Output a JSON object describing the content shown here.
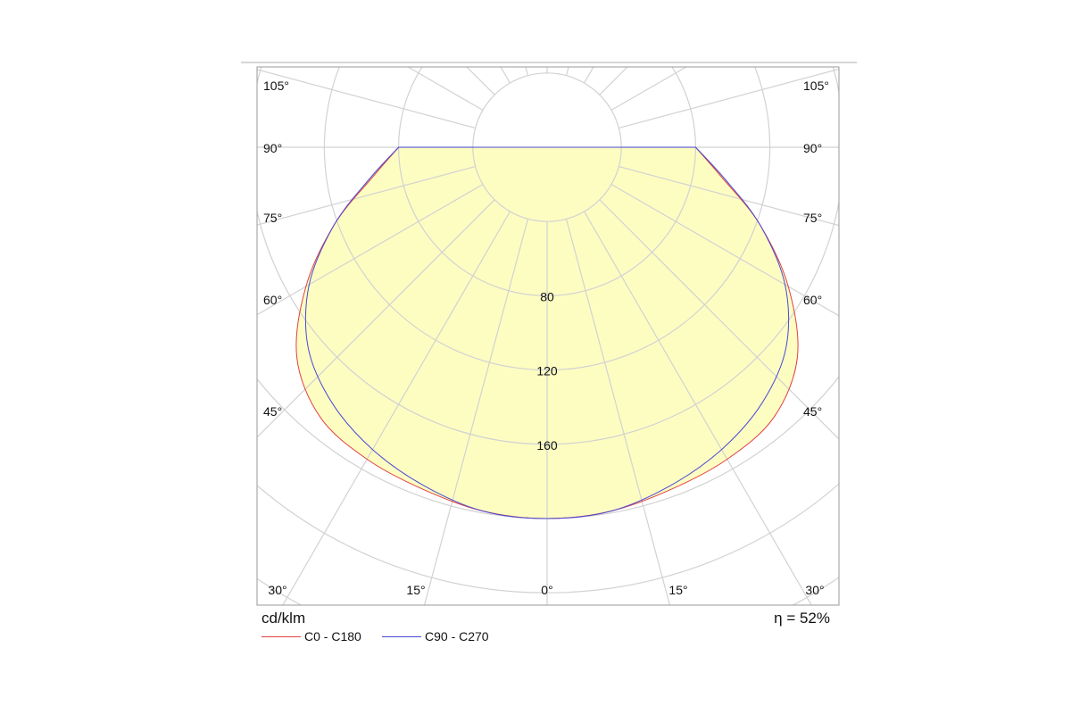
{
  "chart_data": {
    "type": "polar",
    "unit": "cd/klm",
    "efficiency_label": "η = 52%",
    "radial_ticks": [
      "80",
      "120",
      "160"
    ],
    "radial_tick_values": [
      80,
      120,
      160
    ],
    "angle_labels": [
      "0°",
      "15°",
      "30°",
      "45°",
      "60°",
      "75°",
      "90°",
      "105°"
    ],
    "series": [
      {
        "name": "C0 - C180",
        "color": "#e0413f",
        "angles": [
          0,
          10,
          20,
          30,
          40,
          50,
          60,
          70,
          80,
          90
        ],
        "values": [
          200,
          199,
          196,
          194,
          190,
          176,
          150,
          122,
          96,
          80
        ]
      },
      {
        "name": "C90 - C270",
        "color": "#4a4ad6",
        "angles": [
          0,
          10,
          20,
          30,
          40,
          50,
          60,
          70,
          80,
          90
        ],
        "values": [
          200,
          199,
          194,
          188,
          180,
          168,
          148,
          122,
          97,
          80
        ]
      }
    ],
    "fill_color": "#fdfdc2",
    "grid": true
  }
}
